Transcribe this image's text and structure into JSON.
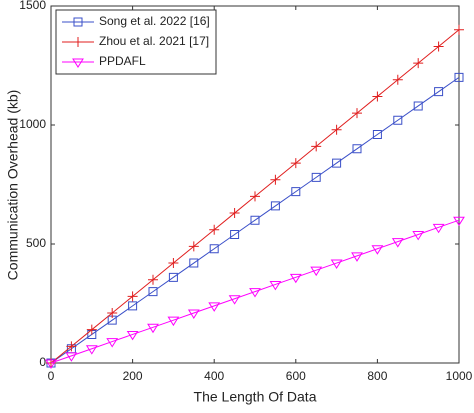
{
  "chart_data": {
    "type": "line",
    "xlabel": "The Length Of Data",
    "ylabel": "Communication Overhead (kb)",
    "x": [
      0,
      50,
      100,
      150,
      200,
      250,
      300,
      350,
      400,
      450,
      500,
      550,
      600,
      650,
      700,
      750,
      800,
      850,
      900,
      950,
      1000
    ],
    "series": [
      {
        "name": "Song et al. 2022 [16]",
        "color": "#3a4fc8",
        "marker": "square",
        "values": [
          0,
          60,
          120,
          180,
          240,
          300,
          360,
          420,
          480,
          540,
          600,
          660,
          720,
          780,
          840,
          900,
          960,
          1020,
          1080,
          1140,
          1200
        ]
      },
      {
        "name": "Zhou et al. 2021 [17]",
        "color": "#e01e1e",
        "marker": "plus",
        "values": [
          0,
          70,
          140,
          210,
          280,
          350,
          420,
          490,
          560,
          630,
          700,
          770,
          840,
          910,
          980,
          1050,
          1120,
          1190,
          1260,
          1330,
          1400
        ]
      },
      {
        "name": "PPDAFL",
        "color": "#ff00ff",
        "marker": "triangle-down",
        "values": [
          0,
          30,
          60,
          90,
          120,
          150,
          180,
          210,
          240,
          270,
          300,
          330,
          360,
          390,
          420,
          450,
          480,
          510,
          540,
          570,
          600
        ]
      }
    ],
    "xlim": [
      0,
      1000
    ],
    "xticks": [
      0,
      200,
      400,
      600,
      800,
      1000
    ],
    "ylim": [
      0,
      1500
    ],
    "yticks": [
      0,
      500,
      1000,
      1500
    ],
    "grid": false,
    "legend": "northwest"
  }
}
